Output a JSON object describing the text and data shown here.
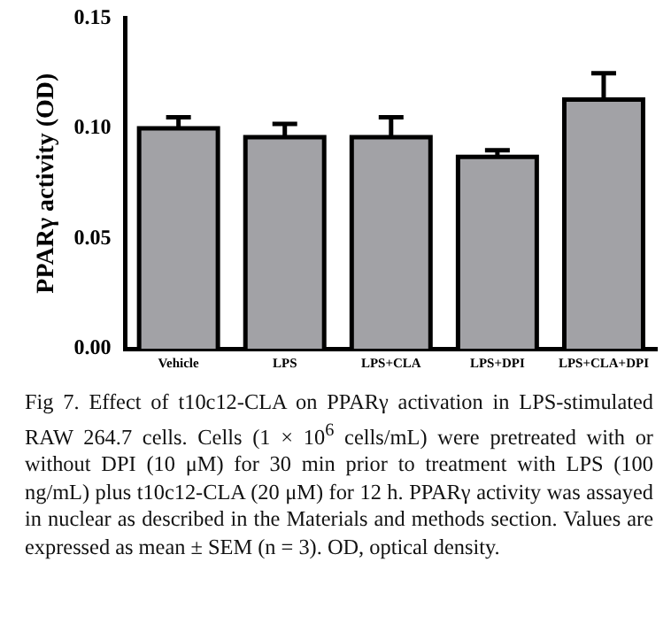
{
  "chart_data": {
    "type": "bar",
    "ylabel": "PPARγ activity (OD)",
    "categories": [
      "Vehicle",
      "LPS",
      "LPS+CLA",
      "LPS+DPI",
      "LPS+CLA+DPI"
    ],
    "values": [
      0.1,
      0.096,
      0.096,
      0.087,
      0.113
    ],
    "errors": [
      0.005,
      0.006,
      0.009,
      0.003,
      0.012
    ],
    "color": "#a2a2a6",
    "ylim": [
      0,
      0.15
    ],
    "yticks": [
      {
        "value": 0,
        "label": "0.00"
      },
      {
        "value": 0.05,
        "label": "0.05"
      },
      {
        "value": 0.1,
        "label": "0.10"
      },
      {
        "value": 0.15,
        "label": "0.15"
      }
    ],
    "grid": false,
    "legend": false,
    "annotations": [
      "Fig 7. Effect of t10c12-CLA on PPARγ activation in LPS-stimulated RAW 264.7 cells. Cells (1 × 10$^{6}$ cells/mL) were pretreated with or without DPI (10 μM) for 30 min prior to treatment with LPS (100 ng/mL) plus t10c12-CLA (20 μM) for 12 h. PPARγ activity was assayed in nuclear as described in the Materials and methods section. Values are expressed as mean ± SEM (n = 3). OD, optical density."
    ]
  }
}
